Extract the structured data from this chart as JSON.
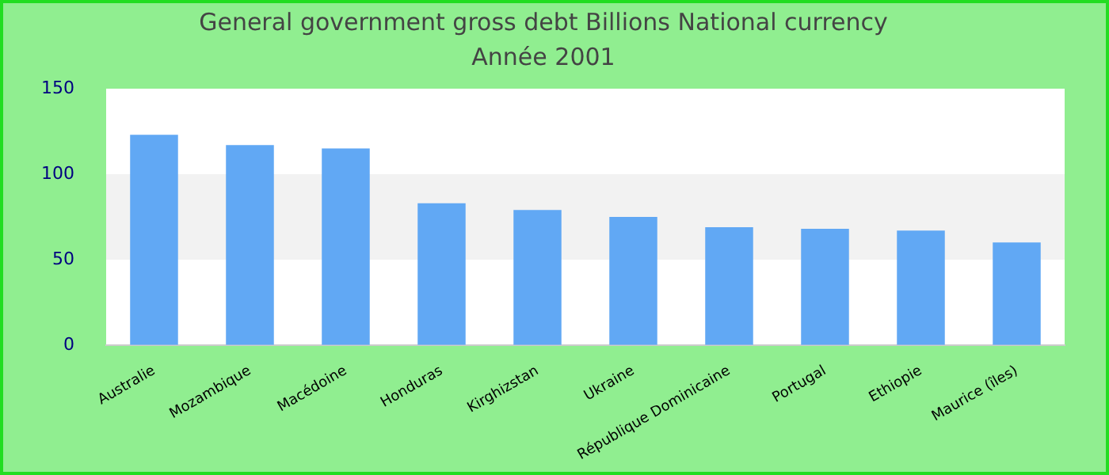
{
  "chart_data": {
    "type": "bar",
    "title": "General government gross debt Billions National currency",
    "subtitle": "Année 2001",
    "categories": [
      "Australie",
      "Mozambique",
      "Macédoine",
      "Honduras",
      "Kirghizstan",
      "Ukraine",
      "République Dominicaine",
      "Portugal",
      "Ethiopie",
      "Maurice (îles)"
    ],
    "values": [
      123,
      117,
      115,
      83,
      79,
      75,
      69,
      68,
      67,
      60
    ],
    "color": "#61a8f4",
    "ylim": [
      0,
      150
    ],
    "yticks": [
      0,
      50,
      100,
      150
    ],
    "bands": [
      {
        "axis": "y",
        "from": 50,
        "to": 100,
        "color": "#f2f2f2"
      }
    ],
    "legend": false
  }
}
